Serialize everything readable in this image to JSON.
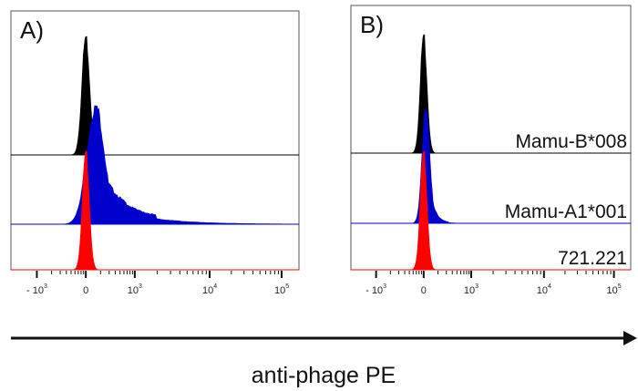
{
  "chart_data": [
    {
      "type": "histogram",
      "panel_label": "A)",
      "xlabel": "anti-phage PE",
      "x_scale": "biexponential",
      "x_tick_labels": [
        "-10^3",
        "0",
        "10^3",
        "10^4",
        "10^5"
      ],
      "row_labels": [],
      "series": [
        {
          "color": "#000000",
          "row": 0,
          "mode": 0.0,
          "spread": 0.08,
          "tail": 0.02
        },
        {
          "color": "#0000cc",
          "row": 1,
          "mode": 0.2,
          "spread": 0.18,
          "tail": 0.55
        },
        {
          "color": "#ff0000",
          "row": 2,
          "mode": 0.0,
          "spread": 0.07,
          "tail": 0.03
        }
      ]
    },
    {
      "type": "histogram",
      "panel_label": "B)",
      "xlabel": "anti-phage PE",
      "x_scale": "biexponential",
      "x_tick_labels": [
        "-10^3",
        "0",
        "10^3",
        "10^4",
        "10^5"
      ],
      "row_labels": [
        "Mamu-B*008",
        "Mamu-A1*001",
        "721.221"
      ],
      "series": [
        {
          "color": "#000000",
          "row": 0,
          "mode": 0.0,
          "spread": 0.07,
          "tail": 0.02
        },
        {
          "color": "#0000cc",
          "row": 1,
          "mode": 0.05,
          "spread": 0.08,
          "tail": 0.12
        },
        {
          "color": "#ff0000",
          "row": 2,
          "mode": 0.0,
          "spread": 0.07,
          "tail": 0.03
        }
      ]
    }
  ],
  "xlabel": "anti-phage PE"
}
